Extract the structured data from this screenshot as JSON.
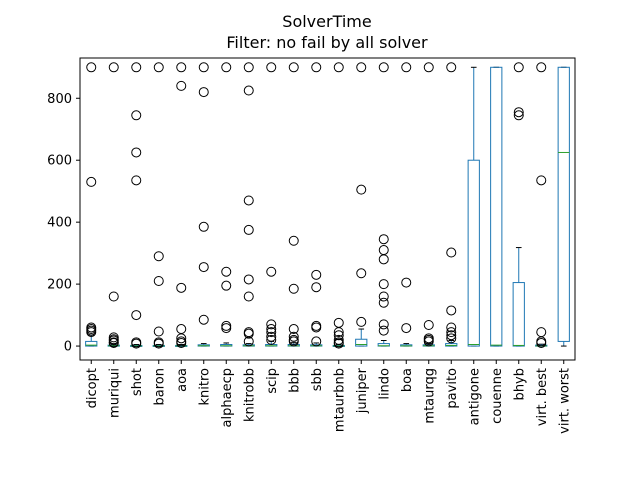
{
  "chart_data": {
    "type": "box",
    "title": "SolverTime",
    "subtitle": "Filter: no fail by all solver",
    "xlabel": "",
    "ylabel": "",
    "ylim": [
      -45,
      930
    ],
    "yticks": [
      0,
      200,
      400,
      600,
      800
    ],
    "grid": false,
    "legend": "none",
    "colors": {
      "box": "#1f77b4",
      "median": "#2ca02c",
      "flier": "#000000",
      "axis": "#000000"
    },
    "categories": [
      "dicopt",
      "muriqui",
      "shot",
      "baron",
      "aoa",
      "knitro",
      "alphaecp",
      "knitrobb",
      "scip",
      "bbb",
      "sbb",
      "mtaurbnb",
      "juniper",
      "lindo",
      "boa",
      "mtaurqg",
      "pavito",
      "antigone",
      "couenne",
      "bhyb",
      "virt. best",
      "virt. worst"
    ],
    "boxes": [
      {
        "q1": 0,
        "median": 3,
        "q3": 15,
        "whisker_low": 0,
        "whisker_high": 35,
        "fliers": [
          900,
          530,
          60,
          55,
          50,
          45
        ]
      },
      {
        "q1": 0,
        "median": 1,
        "q3": 3,
        "whisker_low": 0,
        "whisker_high": 7,
        "fliers": [
          900,
          160,
          28,
          22,
          18,
          12,
          10
        ]
      },
      {
        "q1": 0,
        "median": 0.5,
        "q3": 2,
        "whisker_low": 0,
        "whisker_high": 5,
        "fliers": [
          900,
          745,
          625,
          535,
          100,
          12,
          8
        ]
      },
      {
        "q1": 0,
        "median": 0.5,
        "q3": 2,
        "whisker_low": 0,
        "whisker_high": 5,
        "fliers": [
          900,
          290,
          210,
          47,
          12,
          8
        ]
      },
      {
        "q1": 0,
        "median": 0.5,
        "q3": 2,
        "whisker_low": 0,
        "whisker_high": 5,
        "fliers": [
          900,
          840,
          188,
          55,
          25,
          15,
          10
        ]
      },
      {
        "q1": 0,
        "median": 1,
        "q3": 4,
        "whisker_low": 0,
        "whisker_high": 8,
        "fliers": [
          900,
          820,
          385,
          255,
          85
        ]
      },
      {
        "q1": 0,
        "median": 1,
        "q3": 5,
        "whisker_low": 0,
        "whisker_high": 10,
        "fliers": [
          900,
          240,
          195,
          65,
          58
        ]
      },
      {
        "q1": 0,
        "median": 1,
        "q3": 4,
        "whisker_low": 0,
        "whisker_high": 8,
        "fliers": [
          900,
          825,
          470,
          375,
          215,
          160,
          45,
          40,
          15
        ]
      },
      {
        "q1": 0,
        "median": 1,
        "q3": 5,
        "whisker_low": 0,
        "whisker_high": 15,
        "fliers": [
          900,
          240,
          70,
          55,
          45,
          30,
          20
        ]
      },
      {
        "q1": 0,
        "median": 1,
        "q3": 5,
        "whisker_low": 0,
        "whisker_high": 12,
        "fliers": [
          900,
          340,
          185,
          55,
          30,
          20,
          15
        ]
      },
      {
        "q1": 0,
        "median": 1,
        "q3": 4,
        "whisker_low": 0,
        "whisker_high": 10,
        "fliers": [
          900,
          230,
          190,
          65,
          60,
          15
        ]
      },
      {
        "q1": 0,
        "median": 0.5,
        "q3": 2,
        "whisker_low": 0,
        "whisker_high": 5,
        "fliers": [
          900,
          75,
          45,
          35,
          20,
          12,
          8
        ]
      },
      {
        "q1": 0,
        "median": 5,
        "q3": 22,
        "whisker_low": 0,
        "whisker_high": 55,
        "fliers": [
          900,
          505,
          235,
          78
        ]
      },
      {
        "q1": 0,
        "median": 1,
        "q3": 8,
        "whisker_low": 0,
        "whisker_high": 18,
        "fliers": [
          900,
          345,
          310,
          280,
          200,
          160,
          140,
          70,
          50
        ]
      },
      {
        "q1": 0,
        "median": 0.5,
        "q3": 4,
        "whisker_low": 0,
        "whisker_high": 8,
        "fliers": [
          900,
          205,
          58
        ]
      },
      {
        "q1": 0,
        "median": 1,
        "q3": 4,
        "whisker_low": 0,
        "whisker_high": 8,
        "fliers": [
          900,
          68,
          25,
          20,
          15
        ]
      },
      {
        "q1": 0,
        "median": 2,
        "q3": 8,
        "whisker_low": 0,
        "whisker_high": 18,
        "fliers": [
          900,
          302,
          115,
          60,
          45,
          35,
          25
        ]
      },
      {
        "q1": 0,
        "median": 5,
        "q3": 600,
        "whisker_low": 0,
        "whisker_high": 900,
        "fliers": []
      },
      {
        "q1": 0,
        "median": 3,
        "q3": 900,
        "whisker_low": 0,
        "whisker_high": 900,
        "fliers": []
      },
      {
        "q1": 0,
        "median": 2,
        "q3": 205,
        "whisker_low": 0,
        "whisker_high": 318,
        "fliers": [
          900,
          755,
          745
        ]
      },
      {
        "q1": 0,
        "median": 0.5,
        "q3": 3,
        "whisker_low": 0,
        "whisker_high": 6,
        "fliers": [
          900,
          535,
          45,
          15,
          10
        ]
      },
      {
        "q1": 15,
        "median": 625,
        "q3": 900,
        "whisker_low": 0,
        "whisker_high": 900,
        "fliers": []
      }
    ]
  }
}
